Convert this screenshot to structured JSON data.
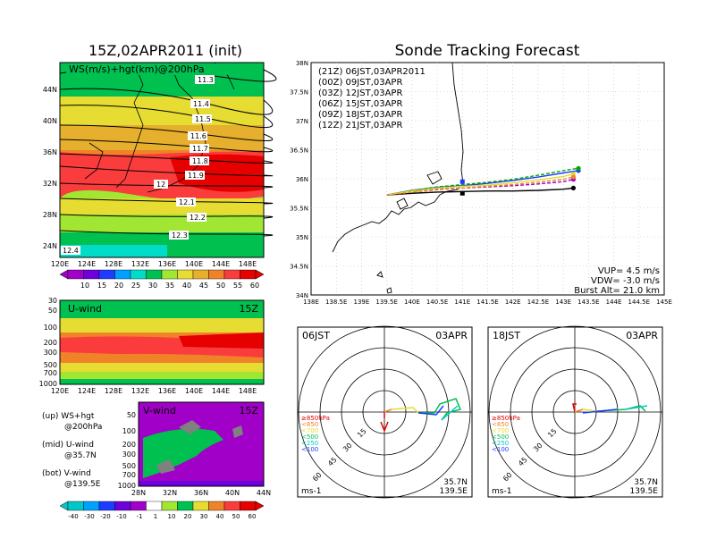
{
  "left_title": "15Z,02APR2011 (init)",
  "right_title": "Sonde Tracking Forecast",
  "map_panel": {
    "label": "WS(m/s)+hgt(km)@200hPa",
    "lat_labels": [
      "44N",
      "40N",
      "36N",
      "32N",
      "28N",
      "24N"
    ],
    "lon_labels": [
      "120E",
      "124E",
      "128E",
      "132E",
      "136E",
      "140E",
      "144E",
      "148E"
    ],
    "contours": [
      "11.3",
      "11.4",
      "11.5",
      "11.6",
      "11.7",
      "11.8",
      "11.9",
      "12",
      "12.1",
      "12.2",
      "12.3",
      "12.4"
    ]
  },
  "ws_colorbar": {
    "labels": [
      "10",
      "15",
      "20",
      "25",
      "30",
      "35",
      "40",
      "45",
      "50",
      "55",
      "60"
    ]
  },
  "uwind_panel": {
    "label": "U-wind",
    "time": "15Z",
    "p_labels": [
      "30",
      "50",
      "100",
      "200",
      "300",
      "500",
      "700",
      "1000"
    ],
    "lon_labels": [
      "120E",
      "124E",
      "128E",
      "132E",
      "136E",
      "140E",
      "144E",
      "148E"
    ]
  },
  "vwind_panel": {
    "label": "V-wind",
    "time": "15Z",
    "p_labels": [
      "50",
      "100",
      "200",
      "300",
      "500",
      "700",
      "1000"
    ],
    "lat_labels": [
      "28N",
      "32N",
      "36N",
      "40N",
      "44N"
    ]
  },
  "legend_text": {
    "up": "(up) WS+hgt",
    "up2": "@200hPa",
    "mid": "(mid) U-wind",
    "mid2": "@35.7N",
    "bot": "(bot) V-wind",
    "bot2": "@139.5E"
  },
  "wind_colorbar": {
    "labels": [
      "-40",
      "-30",
      "-20",
      "-10",
      "-1",
      "1",
      "10",
      "20",
      "30",
      "40",
      "50",
      "60"
    ]
  },
  "chart_data": {
    "type": "line",
    "title": "Sonde Tracking Forecast",
    "xlabels": [
      "138E",
      "138.5E",
      "139E",
      "139.5E",
      "140E",
      "140.5E",
      "141E",
      "141.5E",
      "142E",
      "142.5E",
      "143E",
      "143.5E",
      "144E",
      "144.5E",
      "145E"
    ],
    "ylabels": [
      "38N",
      "37.5N",
      "37N",
      "36.5N",
      "36N",
      "35.5N",
      "35N",
      "34.5N",
      "34N"
    ],
    "xlim": [
      138,
      145
    ],
    "ylim": [
      34,
      38
    ],
    "origin": [
      139.5,
      35.72
    ],
    "series": [
      {
        "name": "(21Z) 06JST,03APR2011",
        "color": "#000000",
        "lons": [
          139.5,
          140.0,
          140.5,
          141.0,
          141.5,
          142.0,
          142.5,
          143.0,
          143.2
        ],
        "lats": [
          35.72,
          35.75,
          35.77,
          35.78,
          35.79,
          35.79,
          35.8,
          35.82,
          35.84
        ]
      },
      {
        "name": "(00Z) 09JST,03APR",
        "color": "#a000c8",
        "lons": [
          139.5,
          140.0,
          140.5,
          141.0,
          141.5,
          142.0,
          142.5,
          143.0,
          143.2
        ],
        "lats": [
          35.72,
          35.78,
          35.82,
          35.84,
          35.86,
          35.88,
          35.91,
          35.95,
          35.99
        ]
      },
      {
        "name": "(03Z) 12JST,03APR",
        "color": "#1e3cff",
        "lons": [
          139.5,
          140.0,
          140.5,
          141.0,
          141.5,
          142.0,
          142.5,
          143.0,
          143.3
        ],
        "lats": [
          35.72,
          35.8,
          35.85,
          35.88,
          35.92,
          35.97,
          36.03,
          36.1,
          36.14
        ]
      },
      {
        "name": "(06Z) 15JST,03APR",
        "color": "#00aa00",
        "lons": [
          139.5,
          140.0,
          140.5,
          141.0,
          141.5,
          142.0,
          142.5,
          143.0,
          143.3
        ],
        "lats": [
          35.72,
          35.8,
          35.86,
          35.9,
          35.94,
          35.99,
          36.06,
          36.14,
          36.18
        ]
      },
      {
        "name": "(09Z) 18JST,03APR",
        "color": "#e6dc32",
        "lons": [
          139.5,
          140.0,
          140.5,
          141.0,
          141.5,
          142.0,
          142.5,
          143.0,
          143.2
        ],
        "lats": [
          35.72,
          35.79,
          35.84,
          35.87,
          35.89,
          35.93,
          35.98,
          36.04,
          36.08
        ]
      },
      {
        "name": "(12Z) 21JST,03APR",
        "color": "#f08228",
        "lons": [
          139.5,
          140.0,
          140.5,
          141.0,
          141.5,
          142.0,
          142.5,
          143.0,
          143.2
        ],
        "lats": [
          35.72,
          35.77,
          35.81,
          35.84,
          35.87,
          35.9,
          35.94,
          35.99,
          36.03
        ]
      }
    ],
    "info": [
      "VUP= 4.5 m/s",
      "VDW= -3.0 m/s",
      "Burst Alt= 21.0 km"
    ]
  },
  "hodo_left": {
    "time": "06JST",
    "date": "03APR",
    "rings": [
      "15",
      "30",
      "45",
      "60"
    ],
    "legend": [
      "≥850hPa",
      "<850",
      "<700",
      "<500",
      "<250",
      "<100"
    ],
    "loc1": "35.7N",
    "loc2": "139.5E",
    "unit": "ms-1"
  },
  "hodo_right": {
    "time": "18JST",
    "date": "03APR",
    "rings": [
      "15",
      "30",
      "45",
      "60"
    ],
    "legend": [
      "≥850hPa",
      "<850",
      "<700",
      "<500",
      "<250",
      "<100"
    ],
    "loc1": "35.7N",
    "loc2": "139.5E",
    "unit": "ms-1"
  },
  "colors": {
    "ws_scale": [
      "#a000c8",
      "#6e00dc",
      "#1e3cff",
      "#00a0ff",
      "#00dcc8",
      "#00c050",
      "#a0e632",
      "#e6dc32",
      "#e6af2d",
      "#f08228",
      "#fa3c3c",
      "#e60000"
    ],
    "wind_scale": [
      "#00c8c8",
      "#00a0ff",
      "#1e3cff",
      "#6e00dc",
      "#a000c8",
      "#ffffff",
      "#a0e632",
      "#00c050",
      "#e6dc32",
      "#f08228",
      "#fa3c3c",
      "#e60000"
    ],
    "hodo_levels": [
      "#e60000",
      "#f08228",
      "#e6dc32",
      "#00c050",
      "#00c8c8",
      "#1e3cff"
    ]
  }
}
